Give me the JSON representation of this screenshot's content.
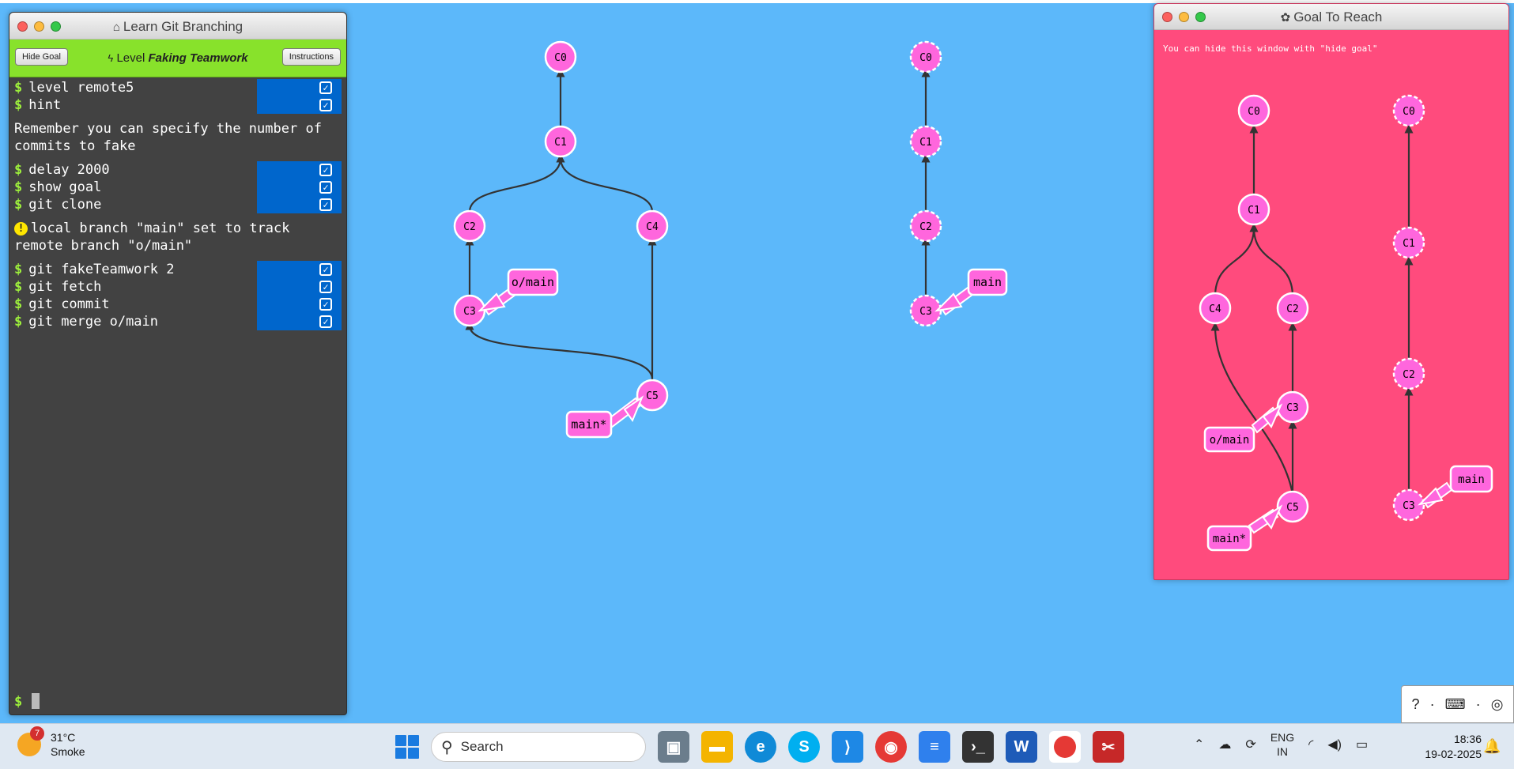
{
  "terminal": {
    "title": "Learn Git Branching",
    "hide_goal_label": "Hide Goal",
    "instructions_label": "Instructions",
    "level_prefix": "Level",
    "level_name": "Faking Teamwork",
    "groups": [
      {
        "commands": [
          "level remote5",
          "hint"
        ]
      },
      {
        "message": "Remember you can specify the number of commits to fake"
      },
      {
        "commands": [
          "delay 2000",
          "show goal",
          "git clone"
        ]
      },
      {
        "warning": "local branch \"main\" set to track remote branch \"o/main\""
      },
      {
        "commands": [
          "git fakeTeamwork 2",
          "git fetch",
          "git commit",
          "git merge o/main"
        ]
      }
    ],
    "prompt": "$"
  },
  "main_graph": {
    "local": {
      "commits": [
        "C0",
        "C1",
        "C2",
        "C4",
        "C3",
        "C5"
      ],
      "branches": [
        "o/main",
        "main*"
      ]
    },
    "remote": {
      "commits": [
        "C0",
        "C1",
        "C2",
        "C3"
      ],
      "branches": [
        "main"
      ]
    }
  },
  "goal": {
    "title": "Goal To Reach",
    "hint": "You can hide this window with \"hide goal\"",
    "local": {
      "commits": [
        "C0",
        "C1",
        "C4",
        "C2",
        "C3",
        "C5"
      ],
      "branches": [
        "o/main",
        "main*"
      ]
    },
    "remote": {
      "commits": [
        "C0",
        "C1",
        "C2",
        "C3"
      ],
      "branches": [
        "main"
      ]
    }
  },
  "help": {
    "question": "?"
  },
  "taskbar": {
    "weather_temp": "31°C",
    "weather_desc": "Smoke",
    "weather_badge": "7",
    "search_placeholder": "Search",
    "apps": [
      "task-view",
      "file-explorer",
      "edge",
      "skype",
      "vscode",
      "chrome",
      "notepad",
      "terminal",
      "word",
      "chrome-profile",
      "snipping-tool"
    ],
    "lang_1": "ENG",
    "lang_2": "IN",
    "time": "18:36",
    "date": "19-02-2025"
  },
  "colors": {
    "background": "#5cb8fa",
    "commit": "#ff66dd",
    "goal_background": "#ff4b7d",
    "level_bar": "#88e22b"
  }
}
